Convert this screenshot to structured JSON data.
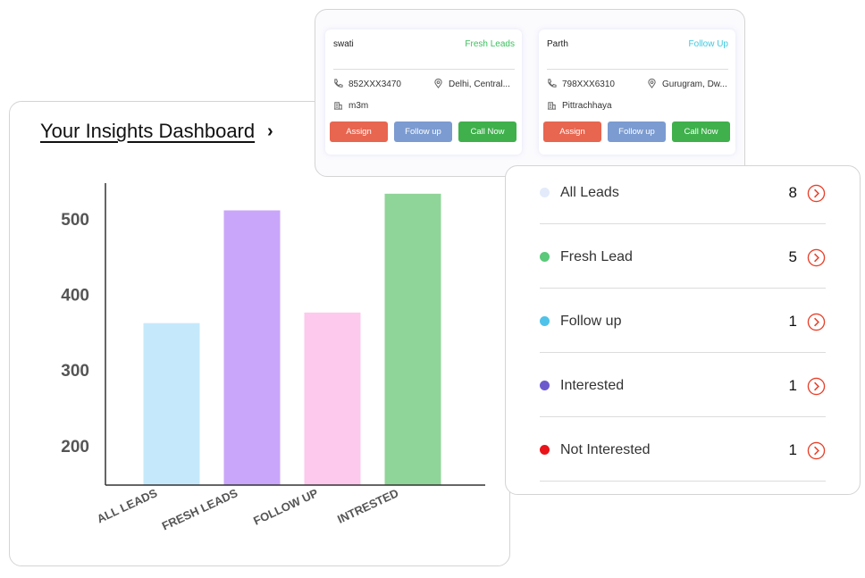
{
  "dashboard": {
    "title": "Your Insights Dashboard"
  },
  "chart_data": {
    "type": "bar",
    "categories": [
      "ALL LEADS",
      "FRESH LEADS",
      "FOLLOW UP",
      "INTRESTED"
    ],
    "values": [
      362,
      511,
      376,
      533
    ],
    "colors": [
      "#c5e9fb",
      "#c9a6fa",
      "#fdc9ec",
      "#8fd498"
    ],
    "ylim": [
      148,
      547
    ],
    "yticks": [
      200,
      300,
      400,
      500
    ],
    "grid": false
  },
  "lead_cards": [
    {
      "name": "swati",
      "status": "Fresh Leads",
      "status_color": "#3cc05e",
      "phone": "852XXX3470",
      "location": "Delhi, Central...",
      "company": "m3m",
      "buttons": [
        "Assign",
        "Follow up",
        "Call Now"
      ]
    },
    {
      "name": "Parth",
      "status": "Follow Up",
      "status_color": "#3ec8e0",
      "phone": "798XXX6310",
      "location": "Gurugram, Dw...",
      "company": "Pittrachhaya",
      "buttons": [
        "Assign",
        "Follow up",
        "Call Now"
      ]
    }
  ],
  "summary": {
    "rows": [
      {
        "label": "All Leads",
        "count": 8,
        "color": "#e3ebfa"
      },
      {
        "label": "Fresh Lead",
        "count": 5,
        "color": "#5ac97a"
      },
      {
        "label": "Follow up",
        "count": 1,
        "color": "#4fc2ea"
      },
      {
        "label": "Interested",
        "count": 1,
        "color": "#6c5acd"
      },
      {
        "label": "Not Interested",
        "count": 1,
        "color": "#e8141a"
      }
    ]
  }
}
